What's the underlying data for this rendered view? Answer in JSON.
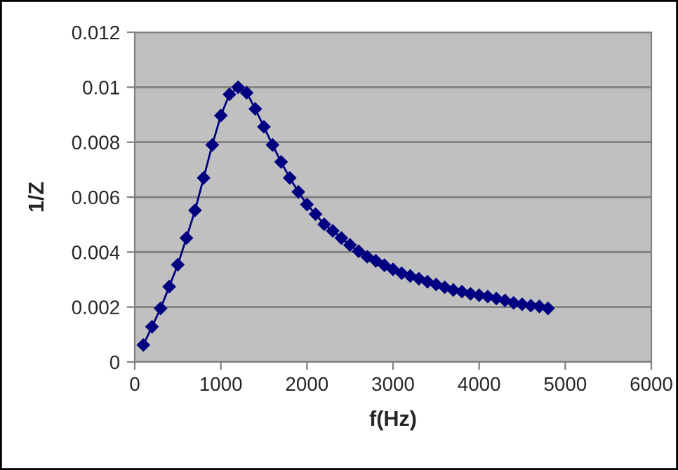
{
  "chart_data": {
    "type": "line",
    "xlabel": "f(Hz)",
    "ylabel": "1/Z",
    "x": [
      100,
      200,
      300,
      400,
      500,
      600,
      700,
      800,
      900,
      1000,
      1100,
      1200,
      1300,
      1400,
      1500,
      1600,
      1700,
      1800,
      1900,
      2000,
      2100,
      2200,
      2300,
      2400,
      2500,
      2600,
      2700,
      2800,
      2900,
      3000,
      3100,
      3200,
      3300,
      3400,
      3500,
      3600,
      3700,
      3800,
      3900,
      4000,
      4100,
      4200,
      4300,
      4400,
      4500,
      4600,
      4700,
      4800
    ],
    "series": [
      {
        "color": "#000080",
        "values": [
          0.00062,
          0.00128,
          0.00195,
          0.00274,
          0.00354,
          0.00451,
          0.00552,
          0.0067,
          0.0079,
          0.00897,
          0.00974,
          0.01,
          0.0098,
          0.00921,
          0.00856,
          0.0079,
          0.00728,
          0.0067,
          0.00619,
          0.00573,
          0.00538,
          0.00501,
          0.00477,
          0.00451,
          0.00426,
          0.00403,
          0.00383,
          0.00368,
          0.00352,
          0.00337,
          0.00323,
          0.00313,
          0.00303,
          0.00292,
          0.00282,
          0.00272,
          0.00262,
          0.00256,
          0.00248,
          0.00243,
          0.00238,
          0.00231,
          0.00224,
          0.00215,
          0.0021,
          0.00205,
          0.00202,
          0.00195
        ]
      }
    ],
    "xlim": [
      0,
      6000
    ],
    "xticks": [
      0,
      1000,
      2000,
      3000,
      4000,
      5000,
      6000
    ],
    "ylim": [
      0,
      0.012
    ],
    "yticks": [
      0,
      0.002,
      0.004,
      0.006,
      0.008,
      {
        "value": 0.01,
        "label": "0.01"
      },
      0.012
    ],
    "grid": "y",
    "marker": "diamond",
    "line_style": "solid"
  }
}
